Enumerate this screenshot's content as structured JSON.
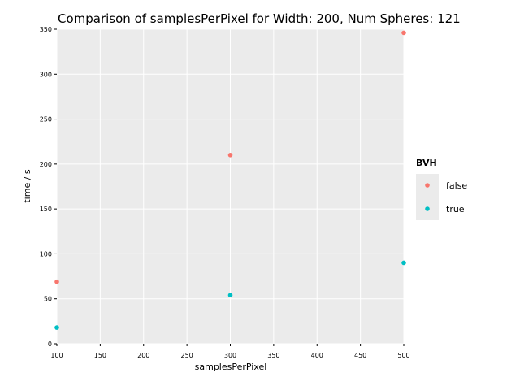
{
  "chart_data": {
    "type": "scatter",
    "title": "Comparison of samplesPerPixel for Width: 200, Num Spheres: 121",
    "xlabel": "samplesPerPixel",
    "ylabel": "time / s",
    "xlim": [
      100,
      500
    ],
    "ylim": [
      0,
      350
    ],
    "xticks": [
      100,
      150,
      200,
      250,
      300,
      350,
      400,
      450,
      500
    ],
    "yticks": [
      0,
      50,
      100,
      150,
      200,
      250,
      300,
      350
    ],
    "grid": true,
    "legend": {
      "title": "BVH",
      "position": "right"
    },
    "series": [
      {
        "name": "false",
        "color": "#f8766d",
        "points": [
          {
            "x": 100,
            "y": 69
          },
          {
            "x": 300,
            "y": 210
          },
          {
            "x": 500,
            "y": 346
          }
        ]
      },
      {
        "name": "true",
        "color": "#00bfc4",
        "points": [
          {
            "x": 100,
            "y": 18
          },
          {
            "x": 300,
            "y": 54
          },
          {
            "x": 500,
            "y": 90
          }
        ]
      }
    ]
  },
  "colors": {
    "panel_background": "#ebebeb",
    "grid": "#ffffff"
  }
}
